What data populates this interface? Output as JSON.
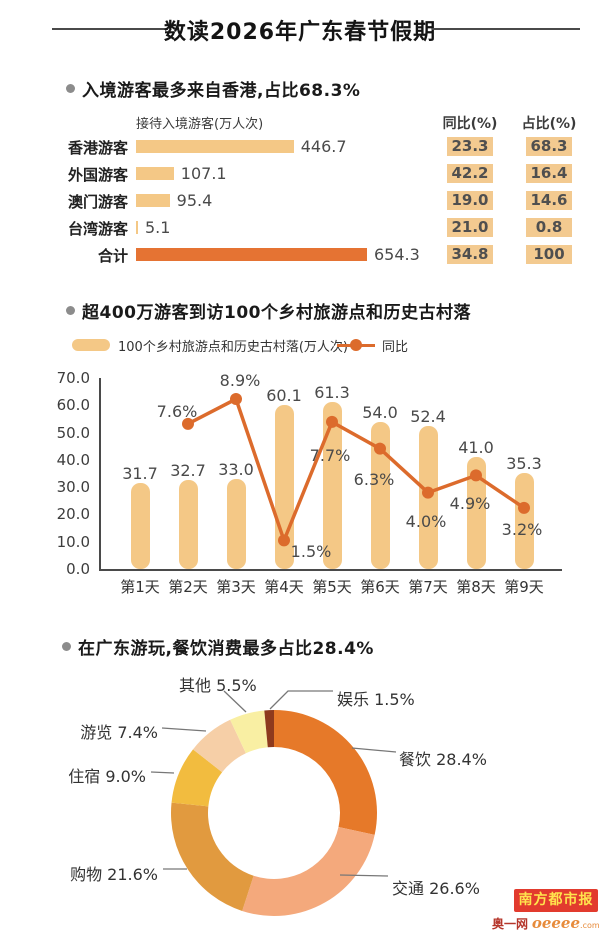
{
  "title": "数读2026年广东春节假期",
  "colors": {
    "bar_light": "#F4C886",
    "bar_dark": "#E57333",
    "line": "#DC6B2C",
    "highlight_cell": "#F3CA90",
    "axis": "#4a4a4a",
    "leader": "#777777",
    "logo_red": "#E23B2E",
    "logo_yellow": "#FFE44D",
    "logo_dark_red": "#B5352A",
    "logo_orange": "#E78B3B"
  },
  "brand": {
    "newspaper": "南方都市报",
    "site_prefix": "奥一网",
    "site_name": "oeeee",
    "site_tld": ".com"
  },
  "chart_data": [
    {
      "type": "bar",
      "orientation": "horizontal",
      "title": "入境游客最多来自香港,占比68.3%",
      "bar_axis_label": "接待入境游客(万人次)",
      "columns": [
        "同比(%)",
        "占比(%)"
      ],
      "xmax": 654.3,
      "rows": [
        {
          "label": "香港游客",
          "value": 446.7,
          "value_display": "446.7",
          "yoy": "23.3",
          "share": "68.3",
          "is_total": false
        },
        {
          "label": "外国游客",
          "value": 107.1,
          "value_display": "107.1",
          "yoy": "42.2",
          "share": "16.4",
          "is_total": false
        },
        {
          "label": "澳门游客",
          "value": 95.4,
          "value_display": "95.4",
          "yoy": "19.0",
          "share": "14.6",
          "is_total": false
        },
        {
          "label": "台湾游客",
          "value": 5.1,
          "value_display": "5.1",
          "yoy": "21.0",
          "share": "0.8",
          "is_total": false
        },
        {
          "label": "合计",
          "value": 654.3,
          "value_display": "654.3",
          "yoy": "34.8",
          "share": "100",
          "is_total": true
        }
      ]
    },
    {
      "type": "bar+line",
      "title": "超400万游客到访100个乡村旅游点和历史古村落",
      "legend": [
        {
          "label": "100个乡村旅游点和历史古村落(万人次)",
          "marker": "bar"
        },
        {
          "label": "同比",
          "marker": "line"
        }
      ],
      "categories": [
        "第1天",
        "第2天",
        "第3天",
        "第4天",
        "第5天",
        "第6天",
        "第7天",
        "第8天",
        "第9天"
      ],
      "bar_values": [
        31.7,
        32.7,
        33.0,
        60.1,
        61.3,
        54.0,
        52.4,
        41.0,
        35.3
      ],
      "line_values_pct": [
        null,
        7.6,
        8.9,
        1.5,
        7.7,
        6.3,
        4.0,
        4.9,
        3.2
      ],
      "ylim": [
        0,
        70
      ],
      "ytick_labels": [
        "70.0",
        "60.0",
        "50.0",
        "40.0",
        "30.0",
        "20.0",
        "10.0",
        "0.0"
      ],
      "grid": false,
      "legend_position": "top"
    },
    {
      "type": "donut",
      "title": "在广东游玩,餐饮消费最多占比28.4%",
      "slices": [
        {
          "label": "餐饮",
          "value": 28.4,
          "color": "#E67929"
        },
        {
          "label": "交通",
          "value": 26.6,
          "color": "#F4A97C"
        },
        {
          "label": "购物",
          "value": 21.6,
          "color": "#E19A3F"
        },
        {
          "label": "住宿",
          "value": 9.0,
          "color": "#F2BC3F"
        },
        {
          "label": "游览",
          "value": 7.4,
          "color": "#F6CFA7"
        },
        {
          "label": "其他",
          "value": 5.5,
          "color": "#F9EFA3"
        },
        {
          "label": "娱乐",
          "value": 1.5,
          "color": "#8E3A1D"
        }
      ]
    }
  ]
}
